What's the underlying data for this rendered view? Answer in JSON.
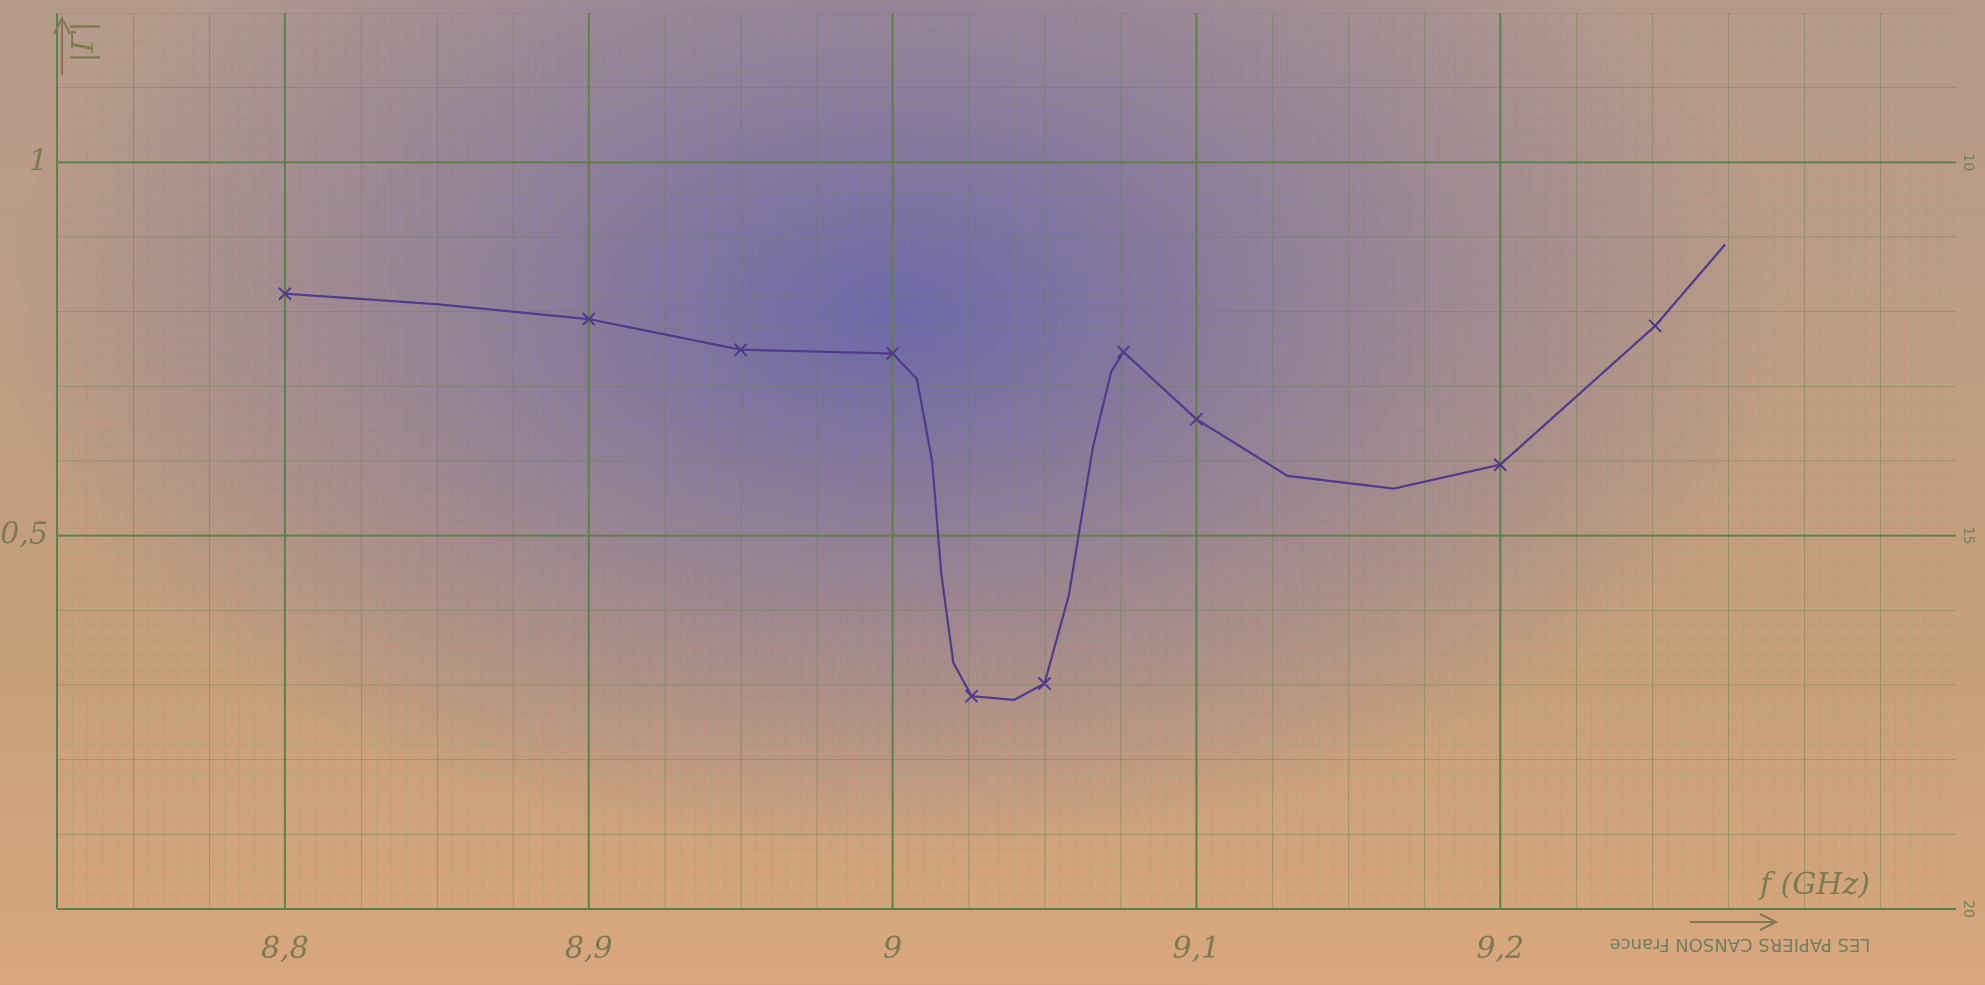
{
  "chart_data": {
    "type": "line",
    "y_label": "|Γ|",
    "x_label": "f (GHz)",
    "x": [
      8.8,
      8.9,
      8.95,
      9.0,
      9.026,
      9.05,
      9.076,
      9.1,
      9.2,
      9.251
    ],
    "values": [
      0.824,
      0.79,
      0.749,
      0.744,
      0.285,
      0.302,
      0.746,
      0.656,
      0.595,
      0.781
    ],
    "curve": {
      "x": [
        8.8,
        8.85,
        8.9,
        8.95,
        9.0,
        9.008,
        9.013,
        9.016,
        9.02,
        9.026,
        9.04,
        9.05,
        9.058,
        9.066,
        9.072,
        9.076,
        9.1,
        9.13,
        9.165,
        9.2,
        9.251,
        9.274
      ],
      "values": [
        0.824,
        0.81,
        0.79,
        0.749,
        0.744,
        0.71,
        0.6,
        0.45,
        0.33,
        0.285,
        0.28,
        0.302,
        0.42,
        0.62,
        0.72,
        0.746,
        0.656,
        0.58,
        0.563,
        0.595,
        0.781,
        0.89
      ]
    },
    "color": "#4f3a8c",
    "xlim": [
      8.725,
      9.35
    ],
    "ylim": [
      0,
      1.2
    ],
    "xticks": [
      {
        "value": 8.8,
        "label": "8,8"
      },
      {
        "value": 8.9,
        "label": "8,9"
      },
      9,
      {
        "value": 9.1,
        "label": "9,1"
      },
      {
        "value": 9.2,
        "label": "9,2"
      }
    ],
    "yticks": [
      {
        "value": 0.5,
        "label": "0,5"
      },
      1
    ],
    "grid": true,
    "paper_texts": [
      "LES PAPIERS CANSON France",
      "10",
      "15",
      "20"
    ]
  }
}
